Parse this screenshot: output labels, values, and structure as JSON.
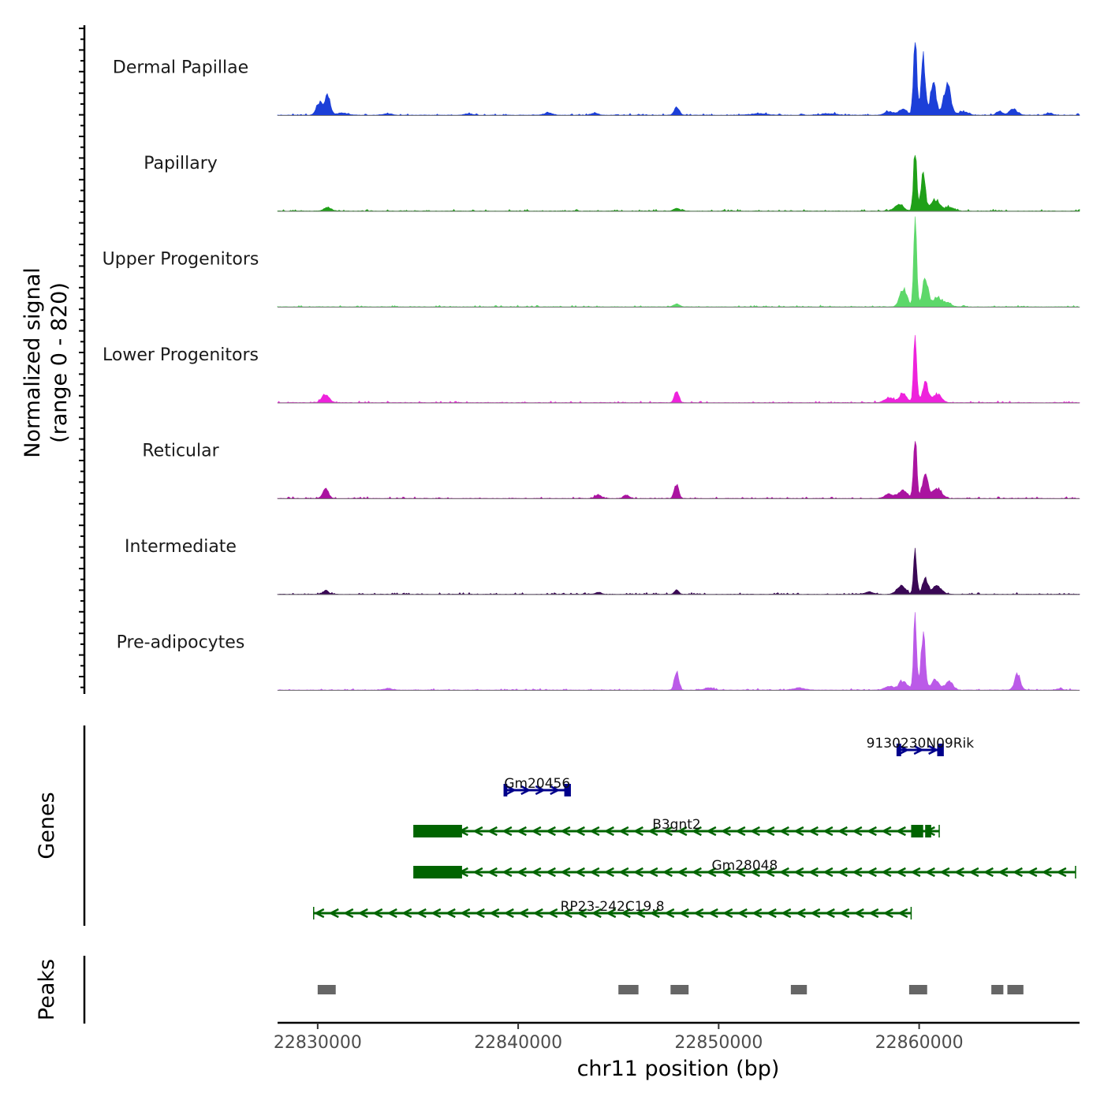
{
  "chart_data": {
    "type": "area",
    "ylabel_line1": "Normalized signal",
    "ylabel_line2": "(range 0 - 820)",
    "xlabel": "chr11 position (bp)",
    "xlim": [
      22828000,
      22868000
    ],
    "x_ticks": [
      22830000,
      22840000,
      22850000,
      22860000
    ],
    "x_tick_labels": [
      "22830000",
      "22840000",
      "22850000",
      "22860000"
    ],
    "coverage_tracks": [
      {
        "name": "Dermal Papillae",
        "color": "#1c3fd8",
        "peaks": [
          {
            "pos": 22830100,
            "h": 0.18,
            "w": 220
          },
          {
            "pos": 22830500,
            "h": 0.26,
            "w": 180
          },
          {
            "pos": 22831200,
            "h": 0.03,
            "w": 400
          },
          {
            "pos": 22833500,
            "h": 0.02,
            "w": 300
          },
          {
            "pos": 22837500,
            "h": 0.02,
            "w": 300
          },
          {
            "pos": 22841500,
            "h": 0.03,
            "w": 300
          },
          {
            "pos": 22843800,
            "h": 0.03,
            "w": 250
          },
          {
            "pos": 22847900,
            "h": 0.11,
            "w": 180
          },
          {
            "pos": 22852000,
            "h": 0.02,
            "w": 600
          },
          {
            "pos": 22855500,
            "h": 0.02,
            "w": 500
          },
          {
            "pos": 22858500,
            "h": 0.05,
            "w": 300
          },
          {
            "pos": 22859200,
            "h": 0.08,
            "w": 300
          },
          {
            "pos": 22859800,
            "h": 1.0,
            "w": 120
          },
          {
            "pos": 22860200,
            "h": 0.78,
            "w": 150
          },
          {
            "pos": 22860700,
            "h": 0.45,
            "w": 200
          },
          {
            "pos": 22861400,
            "h": 0.42,
            "w": 250
          },
          {
            "pos": 22862200,
            "h": 0.05,
            "w": 300
          },
          {
            "pos": 22864000,
            "h": 0.06,
            "w": 200
          },
          {
            "pos": 22864700,
            "h": 0.08,
            "w": 300
          },
          {
            "pos": 22866500,
            "h": 0.03,
            "w": 200
          }
        ]
      },
      {
        "name": "Papillary",
        "color": "#1fa018",
        "peaks": [
          {
            "pos": 22830500,
            "h": 0.05,
            "w": 250
          },
          {
            "pos": 22847900,
            "h": 0.04,
            "w": 200
          },
          {
            "pos": 22859000,
            "h": 0.1,
            "w": 300
          },
          {
            "pos": 22859800,
            "h": 0.8,
            "w": 120
          },
          {
            "pos": 22860200,
            "h": 0.55,
            "w": 150
          },
          {
            "pos": 22860800,
            "h": 0.15,
            "w": 300
          },
          {
            "pos": 22861500,
            "h": 0.05,
            "w": 300
          }
        ]
      },
      {
        "name": "Upper Progenitors",
        "color": "#5dd86a",
        "peaks": [
          {
            "pos": 22847900,
            "h": 0.04,
            "w": 200
          },
          {
            "pos": 22859200,
            "h": 0.25,
            "w": 250
          },
          {
            "pos": 22859800,
            "h": 1.2,
            "w": 110
          },
          {
            "pos": 22860300,
            "h": 0.4,
            "w": 200
          },
          {
            "pos": 22860900,
            "h": 0.13,
            "w": 300
          },
          {
            "pos": 22861400,
            "h": 0.05,
            "w": 300
          }
        ]
      },
      {
        "name": "Lower Progenitors",
        "color": "#ee22dc",
        "peaks": [
          {
            "pos": 22830400,
            "h": 0.12,
            "w": 250
          },
          {
            "pos": 22847900,
            "h": 0.16,
            "w": 150
          },
          {
            "pos": 22858500,
            "h": 0.07,
            "w": 300
          },
          {
            "pos": 22859200,
            "h": 0.14,
            "w": 250
          },
          {
            "pos": 22859800,
            "h": 1.0,
            "w": 110
          },
          {
            "pos": 22860300,
            "h": 0.28,
            "w": 200
          },
          {
            "pos": 22860900,
            "h": 0.12,
            "w": 300
          }
        ]
      },
      {
        "name": "Reticular",
        "color": "#aa14a0",
        "peaks": [
          {
            "pos": 22830400,
            "h": 0.13,
            "w": 200
          },
          {
            "pos": 22844000,
            "h": 0.05,
            "w": 200
          },
          {
            "pos": 22845400,
            "h": 0.05,
            "w": 200
          },
          {
            "pos": 22847900,
            "h": 0.2,
            "w": 150
          },
          {
            "pos": 22858500,
            "h": 0.06,
            "w": 300
          },
          {
            "pos": 22859200,
            "h": 0.12,
            "w": 300
          },
          {
            "pos": 22859800,
            "h": 0.9,
            "w": 110
          },
          {
            "pos": 22860300,
            "h": 0.35,
            "w": 200
          },
          {
            "pos": 22860900,
            "h": 0.13,
            "w": 300
          }
        ]
      },
      {
        "name": "Intermediate",
        "color": "#3a0855",
        "peaks": [
          {
            "pos": 22830400,
            "h": 0.05,
            "w": 200
          },
          {
            "pos": 22844000,
            "h": 0.03,
            "w": 200
          },
          {
            "pos": 22847900,
            "h": 0.06,
            "w": 150
          },
          {
            "pos": 22857500,
            "h": 0.03,
            "w": 300
          },
          {
            "pos": 22859100,
            "h": 0.12,
            "w": 300
          },
          {
            "pos": 22859800,
            "h": 0.6,
            "w": 110
          },
          {
            "pos": 22860300,
            "h": 0.22,
            "w": 200
          },
          {
            "pos": 22860900,
            "h": 0.12,
            "w": 300
          }
        ]
      },
      {
        "name": "Pre-adipocytes",
        "color": "#bb5ae8",
        "peaks": [
          {
            "pos": 22833500,
            "h": 0.02,
            "w": 300
          },
          {
            "pos": 22847900,
            "h": 0.27,
            "w": 150
          },
          {
            "pos": 22849500,
            "h": 0.03,
            "w": 300
          },
          {
            "pos": 22854000,
            "h": 0.03,
            "w": 400
          },
          {
            "pos": 22858500,
            "h": 0.05,
            "w": 300
          },
          {
            "pos": 22859200,
            "h": 0.12,
            "w": 300
          },
          {
            "pos": 22859800,
            "h": 1.0,
            "w": 110
          },
          {
            "pos": 22860200,
            "h": 0.75,
            "w": 150
          },
          {
            "pos": 22860800,
            "h": 0.13,
            "w": 300
          },
          {
            "pos": 22861500,
            "h": 0.12,
            "w": 250
          },
          {
            "pos": 22864900,
            "h": 0.22,
            "w": 200
          },
          {
            "pos": 22867000,
            "h": 0.02,
            "w": 200
          }
        ]
      }
    ],
    "genes_label": "Genes",
    "genes": [
      {
        "name": "9130230N09Rik",
        "strand": "+",
        "start": 22858900,
        "end": 22861200,
        "color": "#00008b",
        "row": 0,
        "exons": [
          [
            22858900,
            22859100
          ],
          [
            22860900,
            22861200
          ]
        ]
      },
      {
        "name": "Gm20456",
        "strand": "+",
        "start": 22839300,
        "end": 22842600,
        "color": "#00008b",
        "row": 1,
        "exons": [
          [
            22839300,
            22839450
          ],
          [
            22842300,
            22842600
          ]
        ]
      },
      {
        "name": "B3gnt2",
        "strand": "-",
        "start": 22834800,
        "end": 22861000,
        "color": "#006400",
        "row": 2,
        "exons": [
          [
            22834800,
            22837200
          ],
          [
            22859600,
            22860200
          ],
          [
            22860300,
            22860600
          ]
        ]
      },
      {
        "name": "Gm28048",
        "strand": "-",
        "start": 22834800,
        "end": 22867800,
        "color": "#006400",
        "row": 3,
        "exons": [
          [
            22834800,
            22837200
          ]
        ]
      },
      {
        "name": "RP23-242C19.8",
        "strand": "-",
        "start": 22829800,
        "end": 22859600,
        "color": "#006400",
        "row": 4,
        "exons": []
      }
    ],
    "peaks_label": "Peaks",
    "peak_regions": [
      [
        22830000,
        22830900
      ],
      [
        22845000,
        22846000
      ],
      [
        22847600,
        22848500
      ],
      [
        22853600,
        22854400
      ],
      [
        22859500,
        22860400
      ],
      [
        22863600,
        22864200
      ],
      [
        22864400,
        22865200
      ]
    ]
  }
}
